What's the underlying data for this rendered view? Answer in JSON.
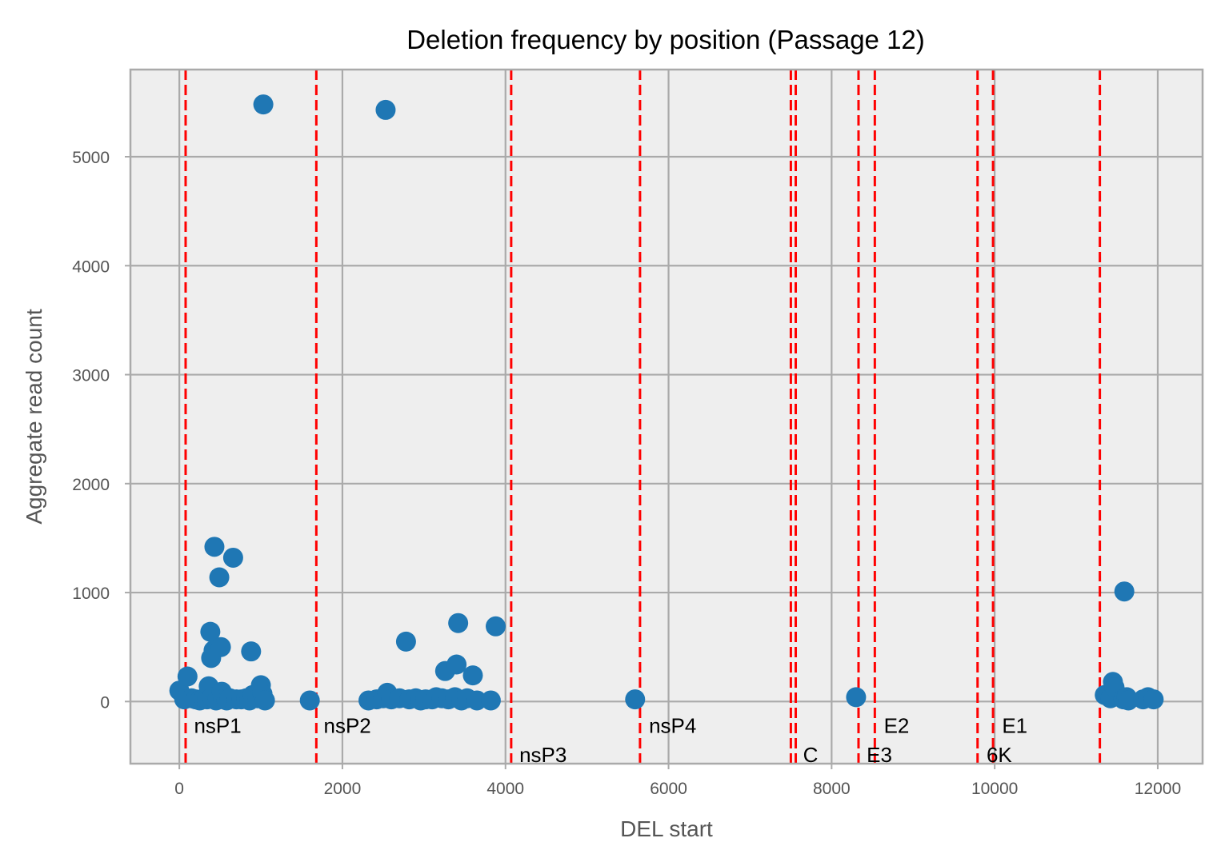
{
  "chart_data": {
    "type": "scatter",
    "title": "Deletion frequency by position (Passage 12)",
    "xlabel": "DEL start",
    "ylabel": "Aggregate read count",
    "xlim": [
      -600,
      12550
    ],
    "ylim": [
      -570,
      5800
    ],
    "x_ticks": [
      0,
      2000,
      4000,
      6000,
      8000,
      10000,
      12000
    ],
    "y_ticks": [
      0,
      1000,
      2000,
      3000,
      4000,
      5000
    ],
    "grid": true,
    "marker_color": "#1f77b4",
    "boundary_color": "#ff0000",
    "background_color": "#eeeeee",
    "region_boundaries": [
      77,
      1680,
      4070,
      5650,
      7500,
      7560,
      8330,
      8530,
      9790,
      9980,
      11290
    ],
    "regions": [
      {
        "name": "nsP1",
        "x": 180,
        "y": -220
      },
      {
        "name": "nsP2",
        "x": 1770,
        "y": -220
      },
      {
        "name": "nsP3",
        "x": 4170,
        "y": -490
      },
      {
        "name": "nsP4",
        "x": 5760,
        "y": -220
      },
      {
        "name": "C",
        "x": 7650,
        "y": -490
      },
      {
        "name": "E3",
        "x": 8430,
        "y": -490
      },
      {
        "name": "E2",
        "x": 8640,
        "y": -220
      },
      {
        "name": "6K",
        "x": 9900,
        "y": -490
      },
      {
        "name": "E1",
        "x": 10090,
        "y": -220
      }
    ],
    "points": [
      [
        0,
        100
      ],
      [
        60,
        20
      ],
      [
        100,
        230
      ],
      [
        150,
        30
      ],
      [
        200,
        20
      ],
      [
        250,
        10
      ],
      [
        300,
        30
      ],
      [
        340,
        20
      ],
      [
        360,
        140
      ],
      [
        380,
        640
      ],
      [
        390,
        400
      ],
      [
        400,
        40
      ],
      [
        420,
        470
      ],
      [
        430,
        1420
      ],
      [
        450,
        10
      ],
      [
        470,
        30
      ],
      [
        490,
        1140
      ],
      [
        510,
        500
      ],
      [
        520,
        90
      ],
      [
        540,
        20
      ],
      [
        580,
        10
      ],
      [
        620,
        30
      ],
      [
        660,
        1320
      ],
      [
        700,
        20
      ],
      [
        760,
        20
      ],
      [
        820,
        30
      ],
      [
        860,
        10
      ],
      [
        880,
        460
      ],
      [
        900,
        60
      ],
      [
        960,
        30
      ],
      [
        1000,
        150
      ],
      [
        1020,
        70
      ],
      [
        1030,
        5480
      ],
      [
        1050,
        10
      ],
      [
        1600,
        10
      ],
      [
        2320,
        10
      ],
      [
        2420,
        20
      ],
      [
        2500,
        30
      ],
      [
        2530,
        5430
      ],
      [
        2550,
        80
      ],
      [
        2600,
        20
      ],
      [
        2700,
        30
      ],
      [
        2780,
        550
      ],
      [
        2820,
        20
      ],
      [
        2900,
        30
      ],
      [
        2960,
        10
      ],
      [
        3020,
        20
      ],
      [
        3100,
        20
      ],
      [
        3150,
        40
      ],
      [
        3220,
        30
      ],
      [
        3260,
        280
      ],
      [
        3300,
        20
      ],
      [
        3380,
        40
      ],
      [
        3400,
        340
      ],
      [
        3420,
        720
      ],
      [
        3460,
        10
      ],
      [
        3530,
        30
      ],
      [
        3600,
        240
      ],
      [
        3650,
        10
      ],
      [
        3820,
        10
      ],
      [
        3880,
        690
      ],
      [
        5590,
        20
      ],
      [
        8300,
        40
      ],
      [
        11350,
        60
      ],
      [
        11420,
        30
      ],
      [
        11450,
        180
      ],
      [
        11470,
        130
      ],
      [
        11580,
        20
      ],
      [
        11590,
        1010
      ],
      [
        11620,
        40
      ],
      [
        11640,
        10
      ],
      [
        11820,
        20
      ],
      [
        11880,
        40
      ],
      [
        11950,
        20
      ]
    ]
  }
}
